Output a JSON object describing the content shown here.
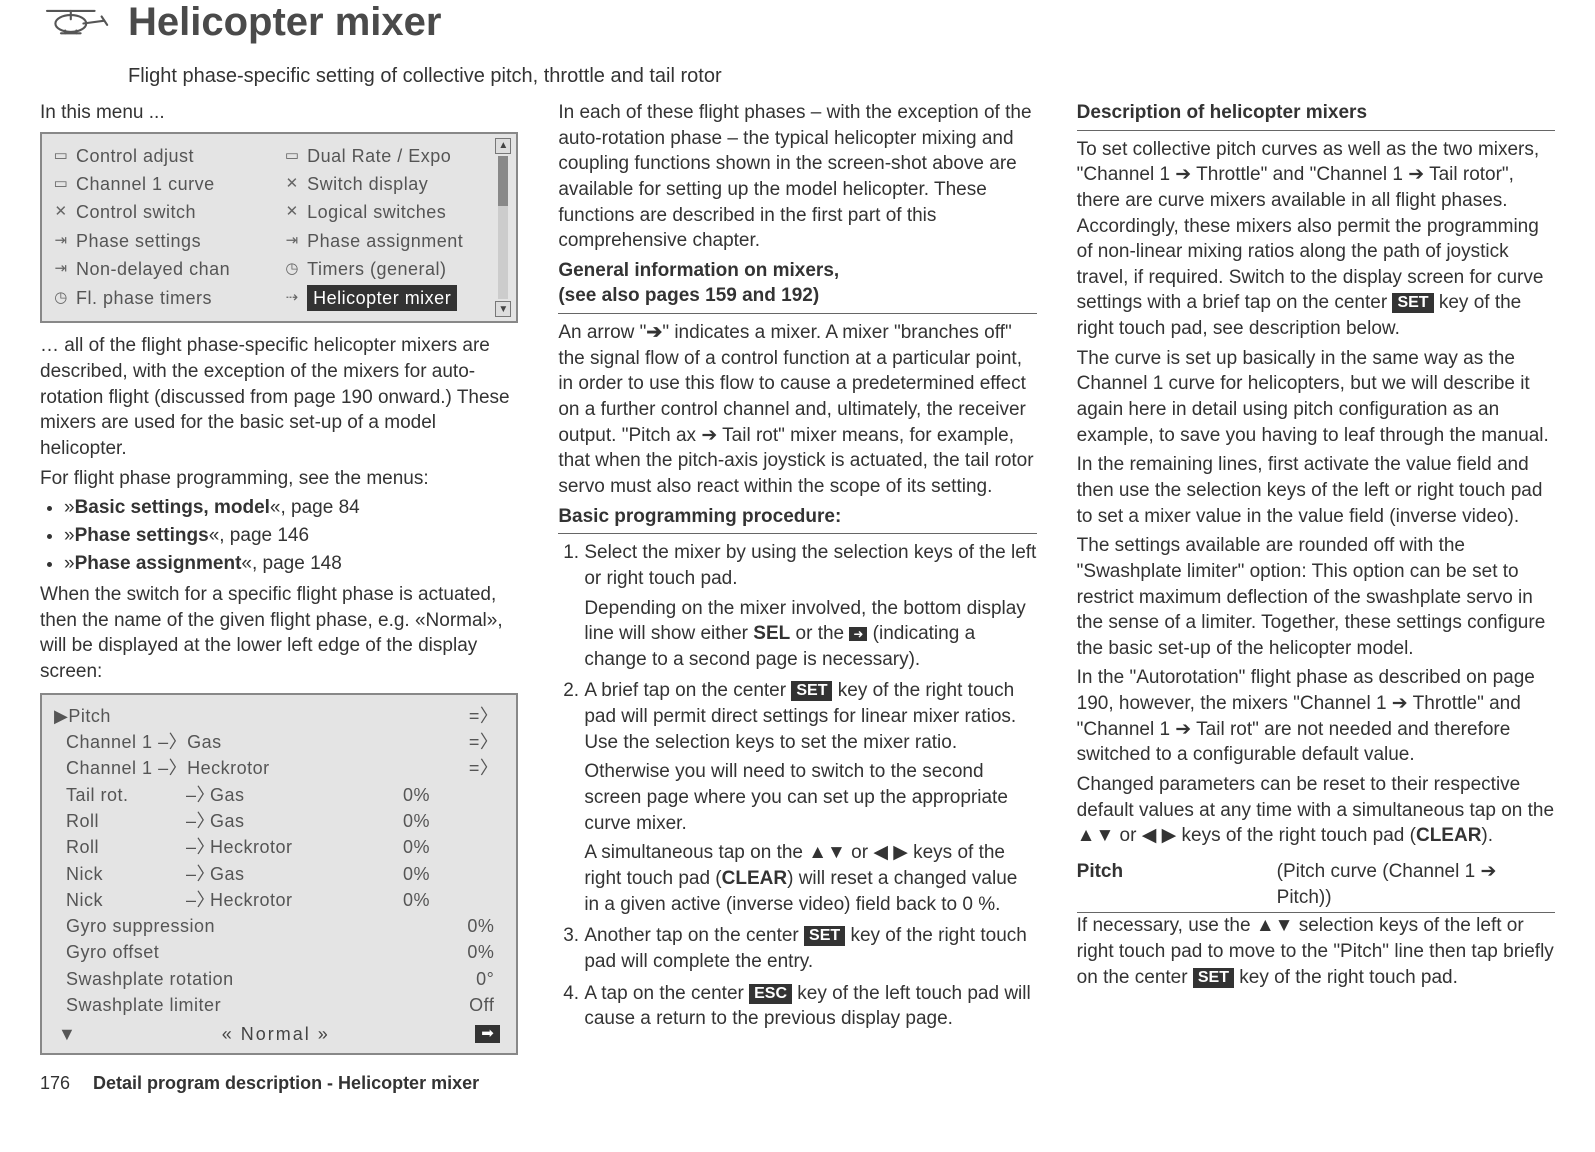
{
  "header": {
    "title": "Helicopter mixer",
    "subtitle": "Flight phase-specific setting of collective pitch, throttle and tail rotor"
  },
  "col1": {
    "intro": "In this menu ...",
    "menu": {
      "left": [
        {
          "icon": "▭",
          "label": "Control adjust"
        },
        {
          "icon": "▭",
          "label": "Channel 1 curve"
        },
        {
          "icon": "✕",
          "label": "Control switch"
        },
        {
          "icon": "⇥",
          "label": "Phase settings"
        },
        {
          "icon": "⇥",
          "label": "Non-delayed chan"
        },
        {
          "icon": "◷",
          "label": "Fl. phase timers"
        }
      ],
      "right": [
        {
          "icon": "▭",
          "label": "Dual Rate / Expo"
        },
        {
          "icon": "✕",
          "label": "Switch display"
        },
        {
          "icon": "✕",
          "label": "Logical switches"
        },
        {
          "icon": "⇥",
          "label": "Phase assignment"
        },
        {
          "icon": "◷",
          "label": "Timers (general)"
        },
        {
          "icon": "⇢",
          "label": "Helicopter mixer",
          "highlight": true
        }
      ]
    },
    "after_menu_1": "… all of the flight phase-specific helicopter mixers are described, with the exception of the mixers for auto-rotation flight (discussed from page 190 onward.) These mixers are used for the basic set-up of a model helicopter.",
    "after_menu_2": "For flight phase programming, see the menus:",
    "bullets": [
      {
        "prefix": "»",
        "bold": "Basic settings, model",
        "suffix": "«, page 84"
      },
      {
        "prefix": "»",
        "bold": "Phase settings",
        "suffix": "«, page 146"
      },
      {
        "prefix": "»",
        "bold": "Phase assignment",
        "suffix": "«, page 148"
      }
    ],
    "after_bullets": "When the switch for a specific flight phase is actuated, then the name of the given flight phase, e.g. «Normal», will be displayed at the lower left edge of the display screen:",
    "display": {
      "first": {
        "left": "▶Pitch",
        "right": "=〉"
      },
      "lines_ch": [
        {
          "a": "Channel 1",
          "b": "Gas",
          "right": "=〉"
        },
        {
          "a": "Channel 1",
          "b": "Heckrotor",
          "right": "=〉"
        }
      ],
      "rows": [
        {
          "a": "Tail rot.",
          "b": "Gas",
          "val": "0%"
        },
        {
          "a": "Roll",
          "b": "Gas",
          "val": "0%"
        },
        {
          "a": "Roll",
          "b": "Heckrotor",
          "val": "0%"
        },
        {
          "a": "Nick",
          "b": "Gas",
          "val": "0%"
        },
        {
          "a": "Nick",
          "b": "Heckrotor",
          "val": "0%"
        }
      ],
      "longs": [
        {
          "label": "Gyro suppression",
          "val": "0%"
        },
        {
          "label": "Gyro offset",
          "val": "0%"
        },
        {
          "label": "Swashplate rotation",
          "val": "0°"
        },
        {
          "label": "Swashplate limiter",
          "val": "Off"
        }
      ],
      "phase_label": "« Normal »",
      "down_arrow": "▼",
      "right_arrow": "➡"
    }
  },
  "col2": {
    "p1": "In each of these flight phases – with the exception of the auto-rotation phase – the typical helicopter mixing and coupling functions shown in the screen-shot above are available for setting up the model helicopter. These functions are described in the first part of this comprehensive chapter.",
    "h1a": "General information on mixers,",
    "h1b": "(see also pages 159 and 192)",
    "p2a": "An arrow \"",
    "p2b": "\" indicates a mixer. A mixer \"branches off\" the signal flow of a control function at a particular point, in order to use this flow to cause a predetermined effect on a further control channel and, ultimately, the receiver output. \"Pitch ax ➔ Tail rot\" mixer means, for example, that when the pitch-axis joystick is actuated, the tail rotor servo must also react within the scope of its setting.",
    "h2": "Basic programming procedure:",
    "steps": {
      "s1a": "Select the mixer by using the selection keys of the left or right touch pad.",
      "s1b_pre": "Depending on the mixer involved, the bottom display line will show either ",
      "s1b_sel": "SEL",
      "s1b_mid": " or the ",
      "s1b_post": " (indicating a change to a second page is necessary).",
      "s2a_pre": "A brief tap on the center ",
      "s2a_post": " key of the right touch pad will permit direct settings for linear mixer ratios. Use the selection keys to set the mixer ratio.",
      "s2b": "Otherwise you will need to switch to the second screen page where you can set up the appropriate curve mixer.",
      "s2c_pre": "A simultaneous tap on the ▲▼ or ◀ ▶ keys of the right touch pad (",
      "s2c_clear": "CLEAR",
      "s2c_post": ") will reset a changed value in a given active (inverse video) field back to 0 %.",
      "s3_pre": "Another tap on the center ",
      "s3_post": " key of the right touch pad will complete the entry.",
      "s4_pre": "A tap on the center ",
      "s4_post": " key of the left touch pad will cause a return to the previous display page."
    }
  },
  "col3": {
    "h1": "Description of helicopter mixers",
    "p1_pre": "To set collective pitch curves as well as the two mixers, \"Channel 1 ➔ Throttle\" and \"Channel 1 ➔ Tail rotor\", there are curve mixers available in all flight phases. Accordingly, these mixers also permit the programming of non-linear mixing ratios along the path of joystick travel, if required. Switch to the display screen for curve settings with a brief tap on the center ",
    "p1_post": " key of the right touch pad, see description below.",
    "p2": "The curve is set up basically in the same way as the Channel 1 curve for helicopters, but we will describe it again here in detail using pitch configuration as an example, to save you having to leaf through the manual.",
    "p3": "In the remaining lines, first activate the value field and then use the selection keys of the left or right touch pad to set a mixer value in the value field (inverse video).",
    "p4": "The settings available are rounded off with the \"Swashplate limiter\" option: This option can be set to restrict maximum deflection of the swashplate servo in the sense of a limiter. Together, these settings configure the basic set-up of the helicopter model.",
    "p5": "In the \"Autorotation\" flight phase as described on page 190, however, the mixers \"Channel 1 ➔ Throttle\" and \"Channel 1 ➔ Tail rot\" are not needed and therefore switched to a configurable default value.",
    "p6_pre": "Changed parameters can be reset to their respective default values at any time with a simultaneous tap on the ▲▼ or ◀ ▶ keys of the right touch pad (",
    "p6_clear": "CLEAR",
    "p6_post": ").",
    "pitch_label": "Pitch",
    "pitch_desc": "(Pitch curve (Channel 1 ➔ Pitch))",
    "p7_pre": "If necessary, use the ▲▼ selection keys of the left or right touch pad to move to the \"Pitch\" line then tap briefly on the center ",
    "p7_post": " key of the right touch pad."
  },
  "keys": {
    "set": "SET",
    "esc": "ESC",
    "arrow": "➔",
    "arrow_icon": "➜"
  },
  "footer": {
    "page": "176",
    "text": "Detail program description - Helicopter mixer"
  }
}
